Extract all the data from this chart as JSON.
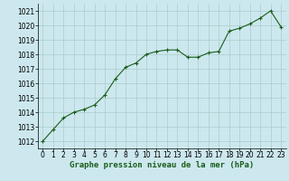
{
  "x": [
    0,
    1,
    2,
    3,
    4,
    5,
    6,
    7,
    8,
    9,
    10,
    11,
    12,
    13,
    14,
    15,
    16,
    17,
    18,
    19,
    20,
    21,
    22,
    23
  ],
  "y": [
    1012.0,
    1012.8,
    1013.6,
    1014.0,
    1014.2,
    1014.5,
    1015.2,
    1016.3,
    1017.1,
    1017.4,
    1018.0,
    1018.2,
    1018.3,
    1018.3,
    1017.8,
    1017.8,
    1018.1,
    1018.2,
    1019.6,
    1019.8,
    1020.1,
    1020.5,
    1021.0,
    1019.9
  ],
  "title": "Graphe pression niveau de la mer (hPa)",
  "ylim": [
    1011.5,
    1021.5
  ],
  "xlim": [
    -0.5,
    23.5
  ],
  "yticks": [
    1012,
    1013,
    1014,
    1015,
    1016,
    1017,
    1018,
    1019,
    1020,
    1021
  ],
  "xticks": [
    0,
    1,
    2,
    3,
    4,
    5,
    6,
    7,
    8,
    9,
    10,
    11,
    12,
    13,
    14,
    15,
    16,
    17,
    18,
    19,
    20,
    21,
    22,
    23
  ],
  "line_color": "#1a5c1a",
  "marker_color": "#1a5c1a",
  "bg_color": "#cce8ee",
  "grid_color": "#aacccc",
  "title_color": "#1a5c1a",
  "title_fontsize": 6.5,
  "tick_fontsize": 5.5,
  "marker": "+",
  "linewidth": 0.8,
  "markersize": 3.5
}
